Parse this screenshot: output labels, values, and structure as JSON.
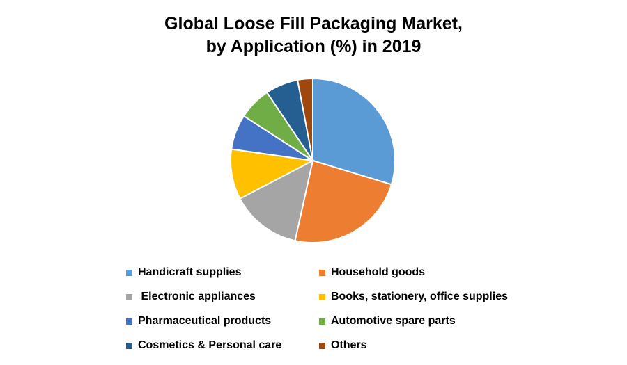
{
  "chart_data": {
    "type": "pie",
    "title_line1": "Global Loose Fill Packaging Market,",
    "title_line2": "by Application (%) in 2019",
    "legend_placement": "bottom",
    "slices": [
      {
        "label": "Handicraft supplies",
        "value": 30,
        "color": "#5B9BD5"
      },
      {
        "label": "Household goods",
        "value": 24,
        "color": "#ED7D31"
      },
      {
        "label": " Electronic appliances",
        "value": 14,
        "color": "#A5A5A5"
      },
      {
        "label": "Books, stationery, office supplies",
        "value": 10,
        "color": "#FFC000"
      },
      {
        "label": "Pharmaceutical products",
        "value": 7,
        "color": "#4472C4"
      },
      {
        "label": "Automotive spare parts",
        "value": 6.5,
        "color": "#70AD47"
      },
      {
        "label": "Cosmetics & Personal care",
        "value": 6.5,
        "color": "#255E91"
      },
      {
        "label": "Others",
        "value": 3,
        "color": "#9E480E"
      }
    ]
  }
}
